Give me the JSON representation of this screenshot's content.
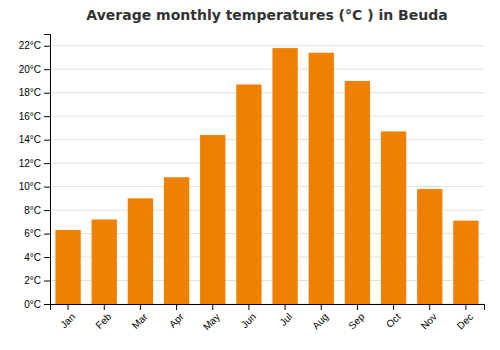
{
  "chart_data": {
    "type": "bar",
    "title": "Average monthly temperatures (°C ) in Beuda",
    "categories": [
      "Jan",
      "Feb",
      "Mar",
      "Apr",
      "May",
      "Jun",
      "Jul",
      "Aug",
      "Sep",
      "Oct",
      "Nov",
      "Dec"
    ],
    "values": [
      6.3,
      7.2,
      9.0,
      10.8,
      14.4,
      18.7,
      21.8,
      21.4,
      19.0,
      14.7,
      9.8,
      7.1
    ],
    "color": "#F08000",
    "ylim": [
      0,
      23
    ],
    "yticks": [
      {
        "value": 0,
        "label": "0°C"
      },
      {
        "value": 2,
        "label": "2°C"
      },
      {
        "value": 4,
        "label": "4°C"
      },
      {
        "value": 6,
        "label": "6°C"
      },
      {
        "value": 8,
        "label": "8°C"
      },
      {
        "value": 10,
        "label": "10°C"
      },
      {
        "value": 12,
        "label": "12°C"
      },
      {
        "value": 14,
        "label": "14°C"
      },
      {
        "value": 16,
        "label": "16°C"
      },
      {
        "value": 18,
        "label": "18°C"
      },
      {
        "value": 20,
        "label": "20°C"
      },
      {
        "value": 22,
        "label": "22°C"
      }
    ],
    "grid": true
  }
}
